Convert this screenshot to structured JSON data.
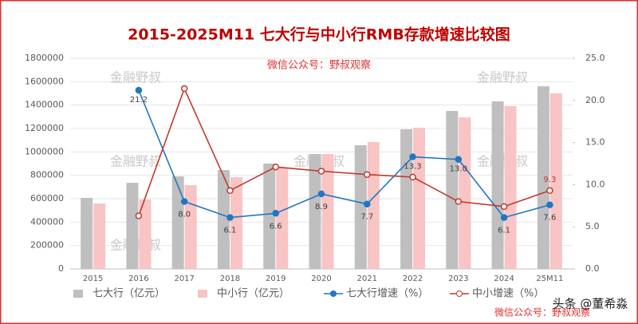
{
  "chart_data": {
    "type": "bar-line",
    "title": "2015-2025M11 七大行与中小行RMB存款增速比较图",
    "subtitle": "微信公众号：野叔观察",
    "categories": [
      "2015",
      "2016",
      "2017",
      "2018",
      "2019",
      "2020",
      "2021",
      "2022",
      "2023",
      "2024",
      "25M11"
    ],
    "series": [
      {
        "name": "七大行（亿元）",
        "type": "bar",
        "color": "#bfbfbf",
        "values": [
          607000,
          736000,
          791000,
          845000,
          900000,
          982000,
          1057000,
          1193000,
          1350000,
          1432000,
          1561000
        ]
      },
      {
        "name": "中小行（亿元）",
        "type": "bar",
        "color": "#f8c4c4",
        "values": [
          559000,
          593000,
          716000,
          784000,
          866000,
          982000,
          1084000,
          1207000,
          1295000,
          1391000,
          1500000
        ]
      },
      {
        "name": "七大行增速（%）",
        "type": "line",
        "axis": "y2",
        "color": "#1f77c4",
        "values": [
          null,
          21.2,
          8.0,
          6.1,
          6.6,
          8.9,
          7.7,
          13.3,
          13.0,
          6.1,
          7.6
        ],
        "value_labels": [
          null,
          "21.2",
          "8.0",
          "6.1",
          "6.6",
          "8.9",
          "7.7",
          "13.3",
          "13.0",
          "6.1",
          "7.6"
        ]
      },
      {
        "name": "中小增速（%）",
        "type": "line",
        "axis": "y2",
        "color": "#c0392b",
        "values": [
          null,
          6.3,
          21.4,
          9.3,
          12.1,
          11.6,
          11.2,
          10.9,
          8.0,
          7.4,
          9.3
        ],
        "value_labels": [
          null,
          null,
          null,
          null,
          null,
          null,
          null,
          null,
          null,
          null,
          "9.3"
        ]
      }
    ],
    "ylim": [
      0,
      1800000
    ],
    "yticks": [
      0,
      200000,
      400000,
      600000,
      800000,
      1000000,
      1200000,
      1400000,
      1600000,
      1800000
    ],
    "y2lim": [
      0,
      25
    ],
    "y2ticks": [
      {
        "value": 0,
        "label": "0.0"
      },
      {
        "value": 5,
        "label": "5.0"
      },
      {
        "value": 10,
        "label": "10.0"
      },
      {
        "value": 15,
        "label": "15.0"
      },
      {
        "value": 20,
        "label": "20.0"
      },
      {
        "value": 25,
        "label": "25.0"
      }
    ],
    "legend": "bottom",
    "watermarks": [
      "金融野叔",
      "金融野叔",
      "金融野叔",
      "金融野叔",
      "金融野叔",
      "金融野叔",
      "微信公众号：野叔观察",
      "头条 @董希淼"
    ]
  }
}
